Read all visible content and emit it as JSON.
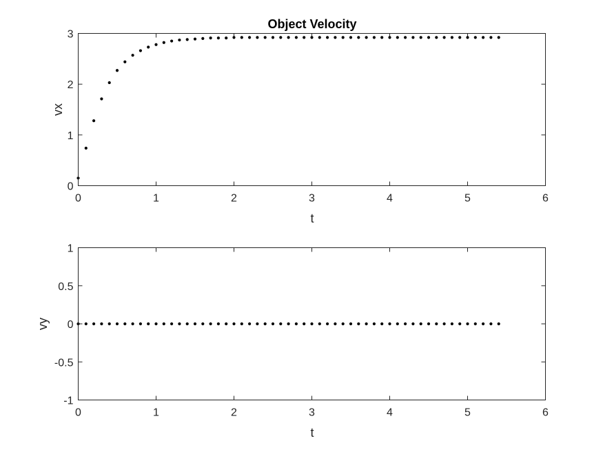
{
  "figure": {
    "background": "#ffffff",
    "marker_color": "#000000"
  },
  "chart_data": [
    {
      "type": "scatter",
      "title": "Object Velocity",
      "xlabel": "t",
      "ylabel": "vx",
      "xlim": [
        0,
        6
      ],
      "ylim": [
        0,
        3
      ],
      "xticks": [
        0,
        1,
        2,
        3,
        4,
        5,
        6
      ],
      "yticks": [
        0,
        1,
        2,
        3
      ],
      "grid": false,
      "series": [
        {
          "x": [
            0,
            0.1,
            0.2,
            0.3,
            0.4,
            0.5,
            0.6,
            0.7,
            0.8,
            0.9,
            1.0,
            1.1,
            1.2,
            1.3,
            1.4,
            1.5,
            1.6,
            1.7,
            1.8,
            1.9,
            2.0,
            2.1,
            2.2,
            2.3,
            2.4,
            2.5,
            2.6,
            2.7,
            2.8,
            2.9,
            3.0,
            3.1,
            3.2,
            3.3,
            3.4,
            3.5,
            3.6,
            3.7,
            3.8,
            3.9,
            4.0,
            4.1,
            4.2,
            4.3,
            4.4,
            4.5,
            4.6,
            4.7,
            4.8,
            4.9,
            5.0,
            5.1,
            5.2,
            5.3,
            5.4
          ],
          "y": [
            0.15,
            0.74,
            1.28,
            1.71,
            2.03,
            2.27,
            2.44,
            2.57,
            2.66,
            2.73,
            2.78,
            2.82,
            2.85,
            2.87,
            2.88,
            2.89,
            2.9,
            2.91,
            2.91,
            2.91,
            2.92,
            2.92,
            2.92,
            2.92,
            2.92,
            2.92,
            2.92,
            2.92,
            2.92,
            2.92,
            2.92,
            2.92,
            2.92,
            2.92,
            2.92,
            2.92,
            2.92,
            2.92,
            2.92,
            2.92,
            2.92,
            2.92,
            2.92,
            2.92,
            2.92,
            2.92,
            2.92,
            2.92,
            2.92,
            2.92,
            2.92,
            2.92,
            2.92,
            2.92,
            2.92
          ]
        }
      ]
    },
    {
      "type": "scatter",
      "title": "",
      "xlabel": "t",
      "ylabel": "vy",
      "xlim": [
        0,
        6
      ],
      "ylim": [
        -1,
        1
      ],
      "xticks": [
        0,
        1,
        2,
        3,
        4,
        5,
        6
      ],
      "yticks": [
        -1,
        -0.5,
        0,
        0.5,
        1
      ],
      "grid": false,
      "series": [
        {
          "x": [
            0,
            0.1,
            0.2,
            0.3,
            0.4,
            0.5,
            0.6,
            0.7,
            0.8,
            0.9,
            1.0,
            1.1,
            1.2,
            1.3,
            1.4,
            1.5,
            1.6,
            1.7,
            1.8,
            1.9,
            2.0,
            2.1,
            2.2,
            2.3,
            2.4,
            2.5,
            2.6,
            2.7,
            2.8,
            2.9,
            3.0,
            3.1,
            3.2,
            3.3,
            3.4,
            3.5,
            3.6,
            3.7,
            3.8,
            3.9,
            4.0,
            4.1,
            4.2,
            4.3,
            4.4,
            4.5,
            4.6,
            4.7,
            4.8,
            4.9,
            5.0,
            5.1,
            5.2,
            5.3,
            5.4
          ],
          "y": [
            0,
            0,
            0,
            0,
            0,
            0,
            0,
            0,
            0,
            0,
            0,
            0,
            0,
            0,
            0,
            0,
            0,
            0,
            0,
            0,
            0,
            0,
            0,
            0,
            0,
            0,
            0,
            0,
            0,
            0,
            0,
            0,
            0,
            0,
            0,
            0,
            0,
            0,
            0,
            0,
            0,
            0,
            0,
            0,
            0,
            0,
            0,
            0,
            0,
            0,
            0,
            0,
            0,
            0,
            0
          ]
        }
      ]
    }
  ]
}
